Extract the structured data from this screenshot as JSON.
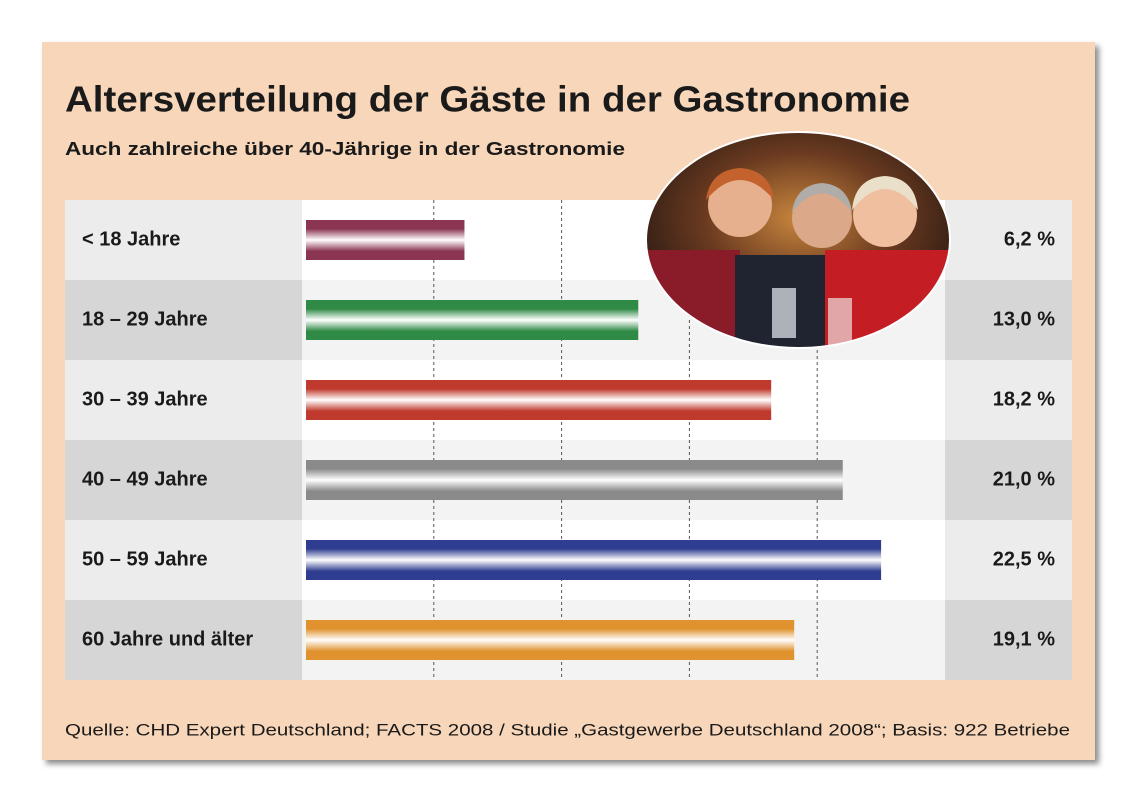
{
  "chart_data": {
    "type": "bar",
    "orientation": "horizontal",
    "title": "Altersverteilung der Gäste in der Gastronomie",
    "subtitle": "Auch zahlreiche über 40-Jährige in der Gastronomie",
    "categories": [
      "< 18 Jahre",
      "18 – 29 Jahre",
      "30 – 39 Jahre",
      "40 – 49 Jahre",
      "50 – 59 Jahre",
      "60 Jahre und älter"
    ],
    "values": [
      6.2,
      13.0,
      18.2,
      21.0,
      22.5,
      19.1
    ],
    "value_labels": [
      "6,2 %",
      "13,0 %",
      "18,2 %",
      "21,0 %",
      "22,5 %",
      "19,1 %"
    ],
    "colors": [
      "#8c3552",
      "#2f8a46",
      "#bf3a2c",
      "#8a8a8a",
      "#2e3d8f",
      "#e0922e"
    ],
    "xlim": [
      0,
      25
    ],
    "xticks": [
      5,
      10,
      15,
      20
    ],
    "grid": true,
    "source": "Quelle: CHD Expert Deutschland; FACTS 2008 / Studie „Gastgewerbe Deutschland 2008“; Basis: 922 Betriebe"
  }
}
